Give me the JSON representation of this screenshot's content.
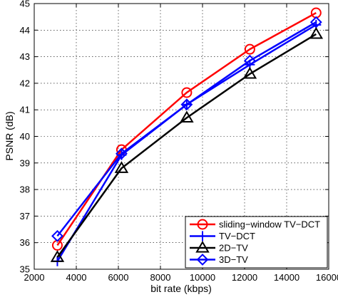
{
  "chart_data": {
    "type": "line",
    "title": "",
    "xlabel": "bit rate (kbps)",
    "ylabel": "PSNR (dB)",
    "xlim": [
      2000,
      16000
    ],
    "ylim": [
      35,
      45
    ],
    "xticks": [
      "2000",
      "4000",
      "6000",
      "8000",
      "10000",
      "12000",
      "14000",
      "16000"
    ],
    "yticks": [
      "35",
      "36",
      "37",
      "38",
      "39",
      "40",
      "41",
      "42",
      "43",
      "44",
      "45"
    ],
    "grid": true,
    "legend_position": "bottom-right",
    "x": [
      3100,
      6150,
      9250,
      12250,
      15400
    ],
    "series": [
      {
        "name": "sliding−window TV−DCT",
        "color": "#ff0000",
        "marker": "circle",
        "values": [
          35.9,
          39.5,
          41.65,
          43.28,
          44.65
        ]
      },
      {
        "name": "TV−DCT",
        "color": "#0000ff",
        "marker": "plus",
        "values": [
          35.3,
          39.3,
          41.2,
          42.7,
          44.2
        ]
      },
      {
        "name": "2D−TV",
        "color": "#000000",
        "marker": "triangle",
        "values": [
          35.45,
          38.8,
          40.7,
          42.35,
          43.85
        ]
      },
      {
        "name": "3D−TV",
        "color": "#0000ff",
        "marker": "diamond",
        "values": [
          36.25,
          39.35,
          41.2,
          42.85,
          44.3
        ]
      }
    ]
  }
}
